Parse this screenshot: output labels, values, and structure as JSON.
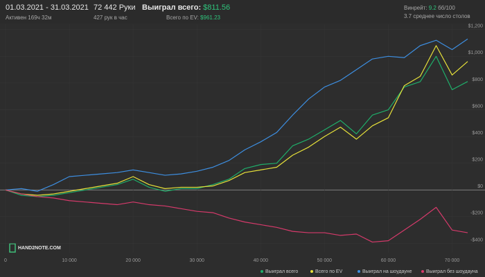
{
  "header": {
    "period": "01.03.2021 - 31.03.2021",
    "active": "Активен 169ч 32м",
    "hands": "72 442 Руки",
    "hands_per_hour": "427 рук в час",
    "won_label": "Выиграл всего:",
    "won_value": "$811.56",
    "ev_label": "Всего по EV:",
    "ev_value": "$961.23",
    "winrate_label": "Винрейт:",
    "winrate_value": "9.2",
    "winrate_unit": "бб/100",
    "tables": "3.7 среднее число столов"
  },
  "logo": "HAND2NOTE.COM",
  "chart_data": {
    "type": "line",
    "x": [
      0,
      2500,
      5000,
      7500,
      10000,
      12500,
      15000,
      17500,
      20000,
      22500,
      25000,
      27500,
      30000,
      32500,
      35000,
      37500,
      40000,
      42500,
      45000,
      47500,
      50000,
      52500,
      55000,
      57500,
      60000,
      62500,
      65000,
      67500,
      70000,
      72442
    ],
    "series": [
      {
        "name": "Выиграл всего",
        "color": "#1fae6a",
        "values": [
          0,
          -40,
          -50,
          -40,
          -20,
          0,
          20,
          40,
          80,
          20,
          -10,
          10,
          10,
          40,
          80,
          160,
          190,
          200,
          330,
          380,
          450,
          520,
          420,
          560,
          600,
          770,
          810,
          1000,
          750,
          811.56
        ]
      },
      {
        "name": "Всего по EV",
        "color": "#e8e23a",
        "values": [
          0,
          -30,
          -40,
          -30,
          -10,
          10,
          30,
          50,
          100,
          40,
          10,
          20,
          20,
          30,
          70,
          130,
          150,
          170,
          260,
          320,
          400,
          470,
          380,
          480,
          540,
          780,
          850,
          1080,
          860,
          961.23
        ]
      },
      {
        "name": "Выиграл на шоудауне",
        "color": "#3d8ee0",
        "values": [
          0,
          10,
          -10,
          40,
          100,
          110,
          120,
          130,
          150,
          130,
          110,
          120,
          140,
          170,
          220,
          300,
          360,
          430,
          560,
          680,
          770,
          820,
          900,
          980,
          1000,
          990,
          1080,
          1120,
          1050,
          1130
        ]
      },
      {
        "name": "Выиграл без шоудауна",
        "color": "#d63a6b",
        "values": [
          0,
          -30,
          -50,
          -60,
          -80,
          -90,
          -100,
          -110,
          -90,
          -110,
          -120,
          -140,
          -160,
          -170,
          -210,
          -240,
          -260,
          -280,
          -310,
          -320,
          -320,
          -340,
          -330,
          -390,
          -380,
          -300,
          -220,
          -130,
          -300,
          -320
        ]
      }
    ],
    "xlim": [
      0,
      72442
    ],
    "ylim": [
      -470,
      1240
    ],
    "xticks": [
      0,
      {
        "value": 10000,
        "label": "10 000"
      },
      {
        "value": 20000,
        "label": "20 000"
      },
      {
        "value": 30000,
        "label": "30 000"
      },
      {
        "value": 40000,
        "label": "40 000"
      },
      {
        "value": 50000,
        "label": "50 000"
      },
      {
        "value": 60000,
        "label": "60 000"
      },
      {
        "value": 70000,
        "label": "70 000"
      }
    ],
    "yticks": [
      {
        "value": -400,
        "label": "-$400"
      },
      {
        "value": -200,
        "label": "-$200"
      },
      {
        "value": 0,
        "label": "$0"
      },
      {
        "value": 200,
        "label": "$200"
      },
      {
        "value": 400,
        "label": "$400"
      },
      {
        "value": 600,
        "label": "$600"
      },
      {
        "value": 800,
        "label": "$800"
      },
      {
        "value": 1000,
        "label": "$1,000"
      },
      {
        "value": 1200,
        "label": "$1,200"
      }
    ],
    "grid": true,
    "legend": "bottom-right"
  }
}
